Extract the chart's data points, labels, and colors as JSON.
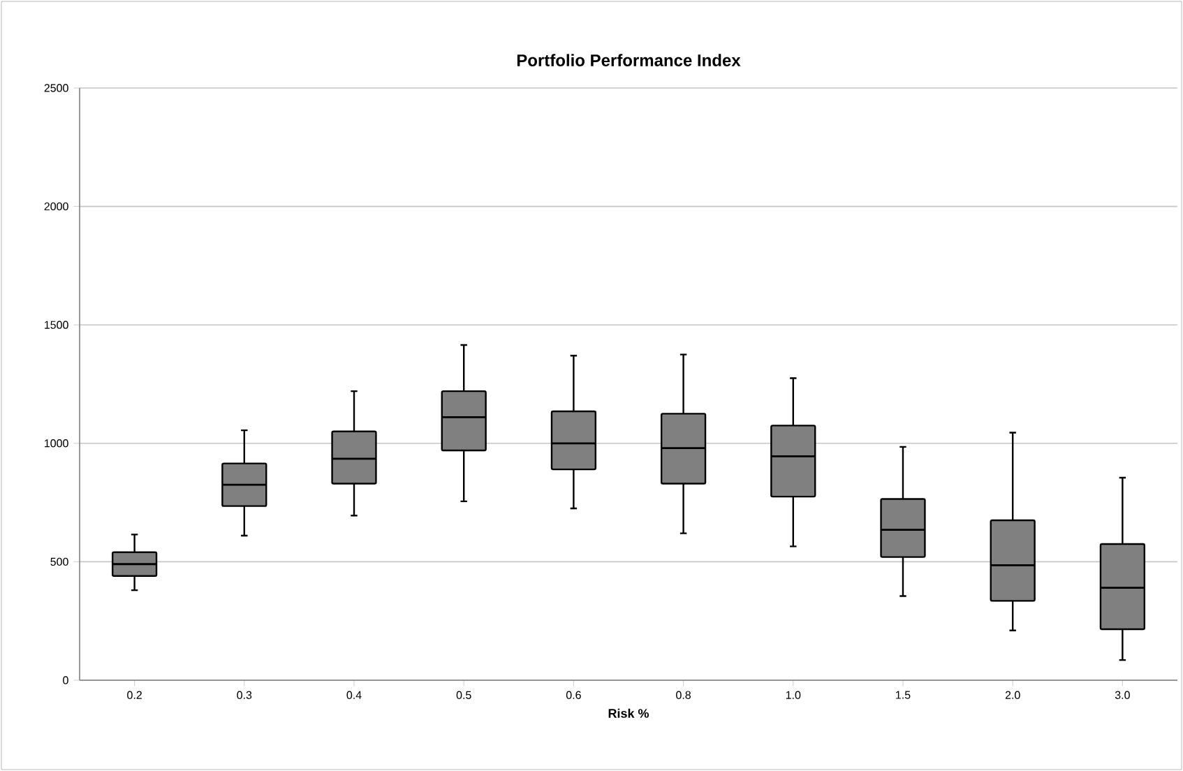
{
  "chart_data": {
    "type": "box",
    "title": "Portfolio Performance Index",
    "xlabel": "Risk %",
    "categories": [
      "0.2",
      "0.3",
      "0.4",
      "0.5",
      "0.6",
      "0.8",
      "1.0",
      "1.5",
      "2.0",
      "3.0"
    ],
    "color": "#808080",
    "boxes": [
      {
        "low": 380,
        "q1": 440,
        "median": 490,
        "q3": 540,
        "high": 615
      },
      {
        "low": 610,
        "q1": 735,
        "median": 825,
        "q3": 915,
        "high": 1055
      },
      {
        "low": 695,
        "q1": 830,
        "median": 935,
        "q3": 1050,
        "high": 1220
      },
      {
        "low": 755,
        "q1": 970,
        "median": 1110,
        "q3": 1220,
        "high": 1415
      },
      {
        "low": 725,
        "q1": 890,
        "median": 1000,
        "q3": 1135,
        "high": 1370
      },
      {
        "low": 620,
        "q1": 830,
        "median": 980,
        "q3": 1125,
        "high": 1375
      },
      {
        "low": 565,
        "q1": 775,
        "median": 945,
        "q3": 1075,
        "high": 1275
      },
      {
        "low": 355,
        "q1": 520,
        "median": 635,
        "q3": 765,
        "high": 985
      },
      {
        "low": 210,
        "q1": 335,
        "median": 485,
        "q3": 675,
        "high": 1045
      },
      {
        "low": 85,
        "q1": 215,
        "median": 390,
        "q3": 575,
        "high": 855
      }
    ],
    "ylim": [
      0,
      2500
    ],
    "yticks": [
      0,
      500,
      1000,
      1500,
      2000,
      2500
    ],
    "grid": "y"
  }
}
